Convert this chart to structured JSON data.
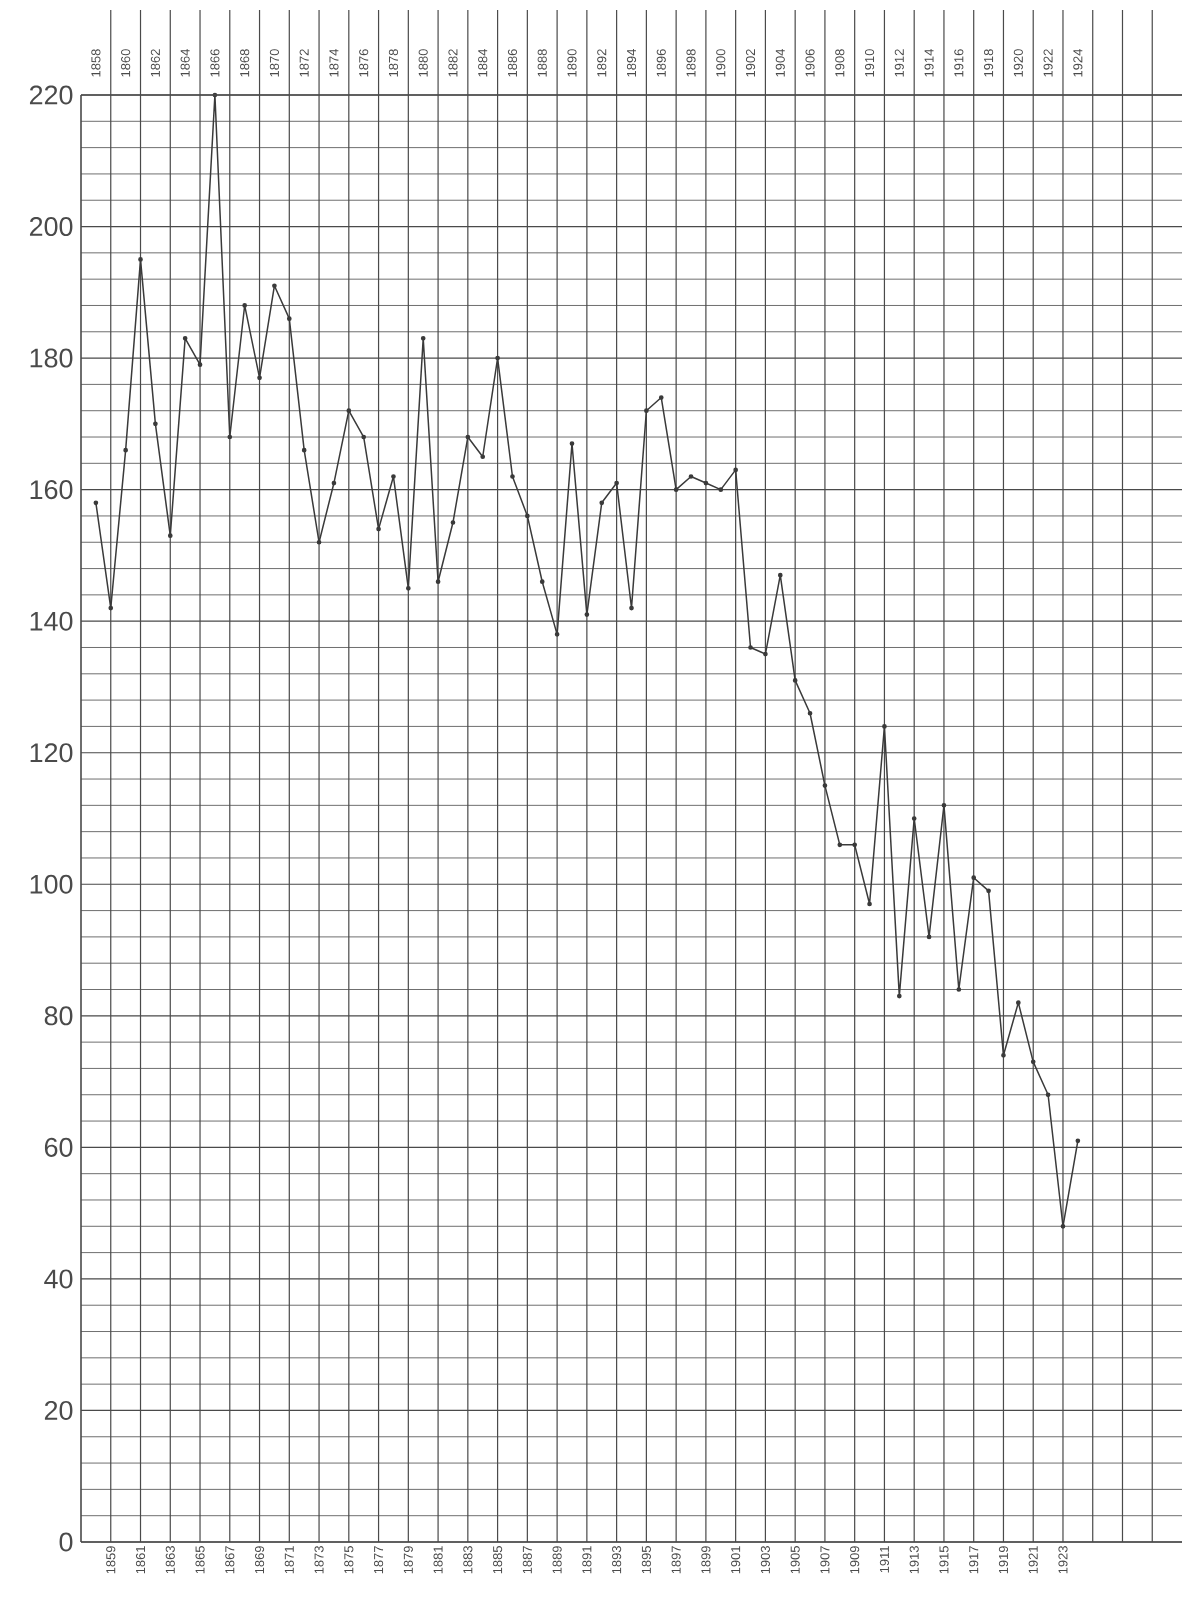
{
  "chart_data": {
    "type": "line",
    "x": [
      1858,
      1859,
      1860,
      1861,
      1862,
      1863,
      1864,
      1865,
      1866,
      1867,
      1868,
      1869,
      1870,
      1871,
      1872,
      1873,
      1874,
      1875,
      1876,
      1877,
      1878,
      1879,
      1880,
      1881,
      1882,
      1883,
      1884,
      1885,
      1886,
      1887,
      1888,
      1889,
      1890,
      1891,
      1892,
      1893,
      1894,
      1895,
      1896,
      1897,
      1898,
      1899,
      1900,
      1901,
      1902,
      1903,
      1904,
      1905,
      1906,
      1907,
      1908,
      1909,
      1910,
      1911,
      1912,
      1913,
      1914,
      1915,
      1916,
      1917,
      1918,
      1919,
      1920,
      1921,
      1922,
      1923,
      1924
    ],
    "values": [
      158,
      142,
      166,
      195,
      170,
      153,
      183,
      179,
      220,
      168,
      188,
      177,
      191,
      186,
      166,
      152,
      161,
      172,
      168,
      154,
      162,
      145,
      183,
      146,
      155,
      168,
      165,
      180,
      162,
      156,
      146,
      138,
      167,
      141,
      158,
      161,
      142,
      172,
      174,
      160,
      162,
      161,
      160,
      163,
      136,
      135,
      147,
      131,
      126,
      115,
      106,
      106,
      97,
      124,
      83,
      110,
      92,
      112,
      84,
      101,
      99,
      74,
      82,
      73,
      68,
      48,
      61
    ],
    "color": "#3a3a3a",
    "marker": "circle",
    "line_style": "solid",
    "grid": true,
    "xlim": [
      1857,
      1931
    ],
    "ylim": [
      0,
      220
    ],
    "xticks": [
      1859,
      1861,
      1863,
      1865,
      1867,
      1869,
      1871,
      1873,
      1875,
      1877,
      1879,
      1881,
      1883,
      1885,
      1887,
      1889,
      1891,
      1893,
      1895,
      1897,
      1899,
      1901,
      1903,
      1905,
      1907,
      1909,
      1911,
      1913,
      1915,
      1917,
      1919,
      1921,
      1923,
      {
        "value": 1925,
        "label": null
      },
      {
        "value": 1927,
        "label": null
      },
      {
        "value": 1929,
        "label": null
      }
    ],
    "x2lim": [
      1857,
      1931
    ],
    "x2ticks": [
      1858,
      1860,
      1862,
      1864,
      1866,
      1868,
      1870,
      1872,
      1874,
      1876,
      1878,
      1880,
      1882,
      1884,
      1886,
      1888,
      1890,
      1892,
      1894,
      1896,
      1898,
      1900,
      1902,
      1904,
      1906,
      1908,
      1910,
      1912,
      1914,
      1916,
      1918,
      1920,
      1922,
      1924
    ],
    "yticks": [
      0,
      20,
      40,
      60,
      80,
      100,
      120,
      140,
      160,
      180,
      200,
      220
    ]
  }
}
